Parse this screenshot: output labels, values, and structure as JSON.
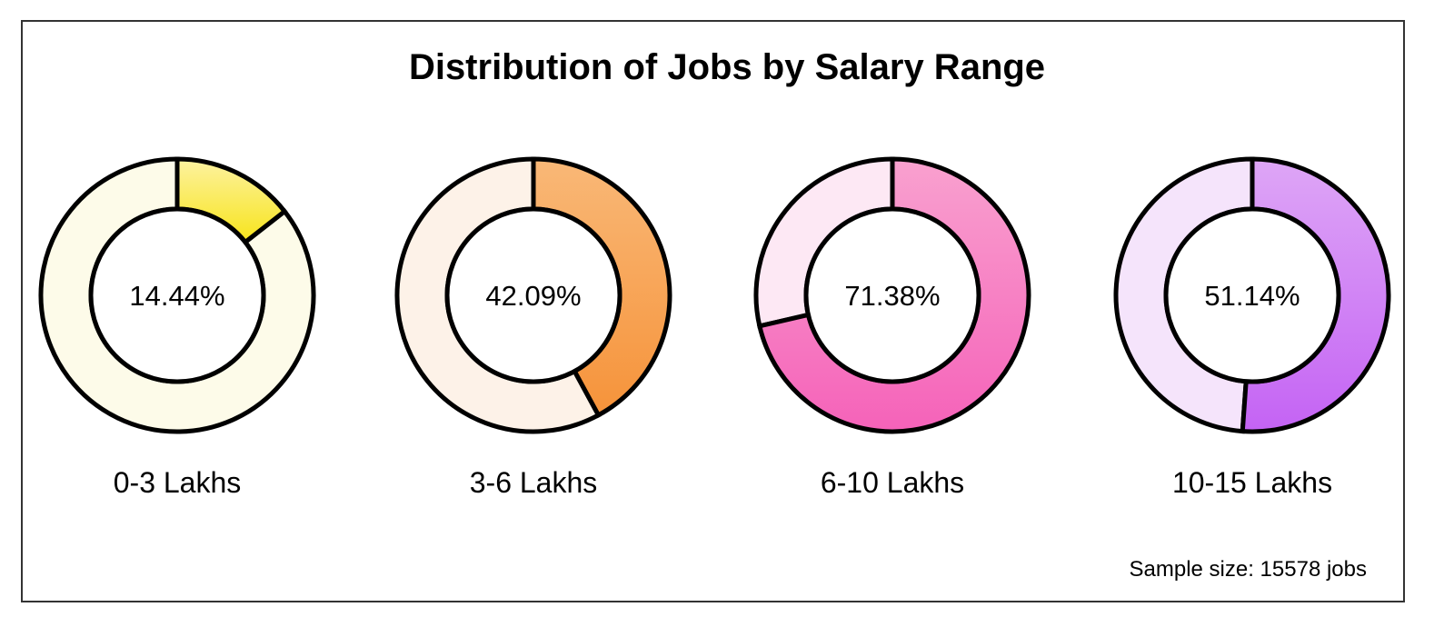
{
  "chart_data": {
    "type": "pie",
    "title": "Distribution of Jobs by Salary Range",
    "note": "Sample size: 15578 jobs",
    "charts": [
      {
        "category": "0-3 Lakhs",
        "value": 14.44,
        "value_label": "14.44%",
        "colors": {
          "from": "#fdf2a0",
          "to": "#f7e41b",
          "track": "#fdfbe9"
        }
      },
      {
        "category": "3-6 Lakhs",
        "value": 42.09,
        "value_label": "42.09%",
        "colors": {
          "from": "#f9b877",
          "to": "#f6933a",
          "track": "#fdf2e8"
        }
      },
      {
        "category": "6-10 Lakhs",
        "value": 71.38,
        "value_label": "71.38%",
        "colors": {
          "from": "#f9a1cf",
          "to": "#f562b9",
          "track": "#fde8f4"
        }
      },
      {
        "category": "10-15 Lakhs",
        "value": 51.14,
        "value_label": "51.14%",
        "colors": {
          "from": "#dea6f6",
          "to": "#c463f4",
          "track": "#f5e4fb"
        }
      }
    ]
  }
}
